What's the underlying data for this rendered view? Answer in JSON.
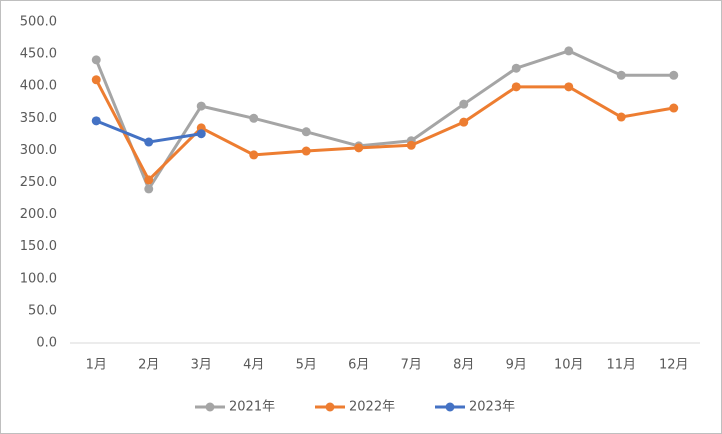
{
  "chart_data": {
    "type": "line",
    "categories": [
      "1月",
      "2月",
      "3月",
      "4月",
      "5月",
      "6月",
      "7月",
      "8月",
      "9月",
      "10月",
      "11月",
      "12月"
    ],
    "series": [
      {
        "name": "2021年",
        "color": "#a5a5a5",
        "values": [
          441,
          240,
          369,
          350,
          329,
          307,
          315,
          372,
          428,
          455,
          417,
          417
        ]
      },
      {
        "name": "2022年",
        "color": "#ed7d31",
        "values": [
          410,
          254,
          335,
          293,
          299,
          304,
          308,
          344,
          399,
          399,
          352,
          366
        ]
      },
      {
        "name": "2023年",
        "color": "#4472c4",
        "values": [
          346,
          313,
          326,
          null,
          null,
          null,
          null,
          null,
          null,
          null,
          null,
          null
        ]
      }
    ],
    "ylim": [
      0,
      500
    ],
    "yticks": [
      {
        "value": 0,
        "label": "0.0"
      },
      {
        "value": 50,
        "label": "50.0"
      },
      {
        "value": 100,
        "label": "100.0"
      },
      {
        "value": 150,
        "label": "150.0"
      },
      {
        "value": 200,
        "label": "200.0"
      },
      {
        "value": 250,
        "label": "250.0"
      },
      {
        "value": 300,
        "label": "300.0"
      },
      {
        "value": 350,
        "label": "350.0"
      },
      {
        "value": 400,
        "label": "400.0"
      },
      {
        "value": 450,
        "label": "450.0"
      },
      {
        "value": 500,
        "label": "500.0"
      }
    ],
    "grid": false,
    "legend": "bottom"
  }
}
